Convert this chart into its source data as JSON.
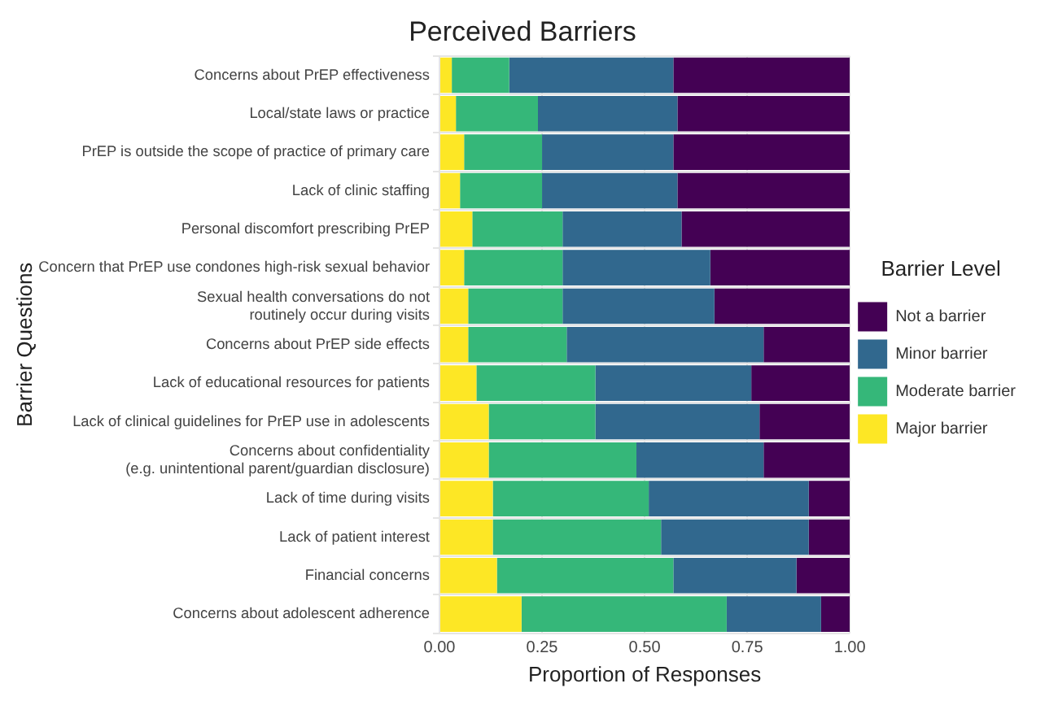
{
  "chart_data": {
    "type": "bar",
    "orientation": "horizontal",
    "stacked": true,
    "title": "Perceived Barriers",
    "xlabel": "Proportion of Responses",
    "ylabel": "Barrier Questions",
    "legend_title": "Barrier Level",
    "legend": "right",
    "grid": true,
    "categories": [
      "Concerns about PrEP effectiveness",
      "Local/state laws or practice",
      "PrEP is outside the scope of practice of primary care",
      "Lack of clinic staffing",
      "Personal discomfort prescribing PrEP",
      "Concern that PrEP use condones high-risk sexual behavior",
      "Sexual health conversations do not\nroutinely occur during visits",
      "Concerns about PrEP side effects",
      "Lack of educational resources for patients",
      "Lack of clinical guidelines for PrEP use in adolescents",
      "Concerns about confidentiality\n(e.g. unintentional parent/guardian disclosure)",
      "Lack of time during visits",
      "Lack of patient interest",
      "Financial concerns",
      "Concerns about adolescent adherence"
    ],
    "xlim": [
      0,
      1
    ],
    "xticks": [
      {
        "value": 0,
        "label": "0.00"
      },
      {
        "value": 0.25,
        "label": "0.25"
      },
      {
        "value": 0.5,
        "label": "0.50"
      },
      {
        "value": 0.75,
        "label": "0.75"
      },
      {
        "value": 1,
        "label": "1.00"
      }
    ],
    "series": [
      {
        "name": "Major barrier",
        "color": "#fde725",
        "values": [
          0.03,
          0.04,
          0.06,
          0.05,
          0.08,
          0.06,
          0.07,
          0.07,
          0.09,
          0.12,
          0.12,
          0.13,
          0.13,
          0.14,
          0.2
        ]
      },
      {
        "name": "Moderate barrier",
        "color": "#35b779",
        "values": [
          0.14,
          0.2,
          0.19,
          0.2,
          0.22,
          0.24,
          0.23,
          0.24,
          0.29,
          0.26,
          0.36,
          0.38,
          0.41,
          0.43,
          0.5
        ]
      },
      {
        "name": "Minor barrier",
        "color": "#31688e",
        "values": [
          0.4,
          0.34,
          0.32,
          0.33,
          0.29,
          0.36,
          0.37,
          0.48,
          0.38,
          0.4,
          0.31,
          0.39,
          0.36,
          0.3,
          0.23
        ]
      },
      {
        "name": "Not a barrier",
        "color": "#440154",
        "values": [
          0.43,
          0.42,
          0.43,
          0.42,
          0.41,
          0.34,
          0.33,
          0.21,
          0.24,
          0.22,
          0.21,
          0.1,
          0.1,
          0.13,
          0.07
        ]
      }
    ]
  }
}
